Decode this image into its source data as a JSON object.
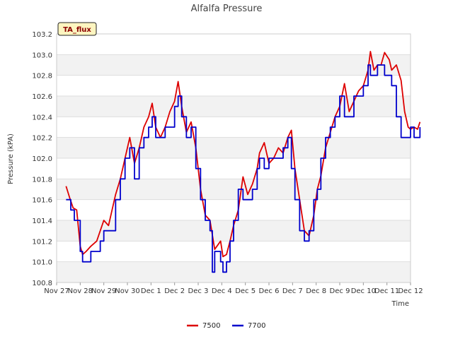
{
  "chart_data": {
    "type": "line",
    "title": "Alfalfa Pressure",
    "xlabel": "Time",
    "ylabel": "Pressure (kPA)",
    "badge": "TA_flux",
    "ylim": [
      100.8,
      103.2
    ],
    "yticks": [
      100.8,
      101.0,
      101.2,
      101.4,
      101.6,
      101.8,
      102.0,
      102.2,
      102.4,
      102.6,
      102.8,
      103.0,
      103.2
    ],
    "ytick_labels": [
      "100.8",
      "101.0",
      "101.2",
      "101.4",
      "101.6",
      "101.8",
      "102.0",
      "102.2",
      "102.4",
      "102.6",
      "102.8",
      "103.0",
      "103.2"
    ],
    "xlim": [
      0,
      15
    ],
    "xticks": [
      0,
      1,
      2,
      3,
      4,
      5,
      6,
      7,
      8,
      9,
      10,
      11,
      12,
      13,
      14,
      15
    ],
    "xtick_labels": [
      "Nov 27",
      "Nov 28",
      "Nov 29",
      "Nov 30",
      "Dec 1",
      "Dec 2",
      "Dec 3",
      "Dec 4",
      "Dec 5",
      "Dec 6",
      "Dec 7",
      "Dec 8",
      "Dec 9",
      "Dec 10",
      "Dec 11",
      "Dec 12"
    ],
    "grid": true,
    "legend_position": "bottom-center",
    "series": [
      {
        "name": "7500",
        "color": "#dd0000",
        "x": [
          0.4,
          0.55,
          0.7,
          0.85,
          1.0,
          1.1,
          1.25,
          1.45,
          1.7,
          2.0,
          2.2,
          2.5,
          2.7,
          2.9,
          3.1,
          3.3,
          3.5,
          3.7,
          3.9,
          4.05,
          4.2,
          4.4,
          4.6,
          4.8,
          5.0,
          5.15,
          5.3,
          5.5,
          5.7,
          5.9,
          6.1,
          6.3,
          6.5,
          6.7,
          6.95,
          7.05,
          7.2,
          7.35,
          7.5,
          7.7,
          7.9,
          8.1,
          8.3,
          8.5,
          8.6,
          8.8,
          9.0,
          9.2,
          9.4,
          9.6,
          9.8,
          9.95,
          10.1,
          10.3,
          10.5,
          10.7,
          10.9,
          11.05,
          11.2,
          11.4,
          11.6,
          11.8,
          12.0,
          12.2,
          12.4,
          12.6,
          12.8,
          13.0,
          13.2,
          13.3,
          13.45,
          13.6,
          13.75,
          13.9,
          14.1,
          14.2,
          14.4,
          14.6,
          14.75,
          14.9,
          15.0,
          15.15,
          15.3,
          15.4
        ],
        "values": [
          101.73,
          101.62,
          101.52,
          101.5,
          101.15,
          101.07,
          101.1,
          101.15,
          101.2,
          101.4,
          101.35,
          101.65,
          101.8,
          102.0,
          102.2,
          101.95,
          102.1,
          102.3,
          102.4,
          102.53,
          102.3,
          102.2,
          102.3,
          102.45,
          102.55,
          102.74,
          102.5,
          102.25,
          102.35,
          102.1,
          101.7,
          101.45,
          101.4,
          101.12,
          101.2,
          101.05,
          101.07,
          101.2,
          101.35,
          101.5,
          101.82,
          101.65,
          101.75,
          101.9,
          102.05,
          102.15,
          101.95,
          102.0,
          102.1,
          102.05,
          102.2,
          102.27,
          101.9,
          101.6,
          101.3,
          101.25,
          101.45,
          101.7,
          101.83,
          102.1,
          102.25,
          102.4,
          102.5,
          102.72,
          102.45,
          102.55,
          102.65,
          102.7,
          102.85,
          103.03,
          102.85,
          102.9,
          102.9,
          103.02,
          102.95,
          102.85,
          102.9,
          102.75,
          102.45,
          102.3,
          102.28,
          102.3,
          102.28,
          102.35
        ]
      },
      {
        "name": "7700",
        "color": "#0000cc",
        "x": [
          0.4,
          0.6,
          0.75,
          1.0,
          1.1,
          1.3,
          1.45,
          1.7,
          1.85,
          2.0,
          2.2,
          2.5,
          2.7,
          2.9,
          3.1,
          3.3,
          3.5,
          3.7,
          3.9,
          4.05,
          4.2,
          4.4,
          4.6,
          4.8,
          5.0,
          5.15,
          5.3,
          5.5,
          5.7,
          5.9,
          6.1,
          6.3,
          6.5,
          6.6,
          6.7,
          6.95,
          7.05,
          7.2,
          7.35,
          7.5,
          7.7,
          7.9,
          8.1,
          8.3,
          8.5,
          8.6,
          8.8,
          9.0,
          9.2,
          9.4,
          9.6,
          9.8,
          9.95,
          10.1,
          10.3,
          10.5,
          10.7,
          10.9,
          11.05,
          11.2,
          11.4,
          11.6,
          11.8,
          12.0,
          12.2,
          12.4,
          12.6,
          12.8,
          13.0,
          13.2,
          13.3,
          13.45,
          13.6,
          13.75,
          13.9,
          14.1,
          14.2,
          14.4,
          14.6,
          14.75,
          14.9,
          15.0,
          15.15,
          15.3,
          15.4
        ],
        "values": [
          101.6,
          101.5,
          101.4,
          101.1,
          101.0,
          101.0,
          101.1,
          101.1,
          101.2,
          101.3,
          101.3,
          101.6,
          101.8,
          102.0,
          102.1,
          101.8,
          102.1,
          102.2,
          102.3,
          102.4,
          102.2,
          102.2,
          102.3,
          102.3,
          102.5,
          102.6,
          102.4,
          102.2,
          102.3,
          101.9,
          101.6,
          101.4,
          101.3,
          100.9,
          101.1,
          101.0,
          100.9,
          101.0,
          101.2,
          101.4,
          101.7,
          101.6,
          101.6,
          101.7,
          101.9,
          102.0,
          101.9,
          102.0,
          102.0,
          102.0,
          102.1,
          102.2,
          101.9,
          101.6,
          101.3,
          101.2,
          101.3,
          101.6,
          101.7,
          102.0,
          102.2,
          102.3,
          102.4,
          102.6,
          102.4,
          102.4,
          102.6,
          102.6,
          102.7,
          102.9,
          102.8,
          102.8,
          102.9,
          102.9,
          102.8,
          102.8,
          102.7,
          102.4,
          102.2,
          102.2,
          102.2,
          102.3,
          102.2,
          102.2,
          102.3
        ]
      }
    ]
  }
}
